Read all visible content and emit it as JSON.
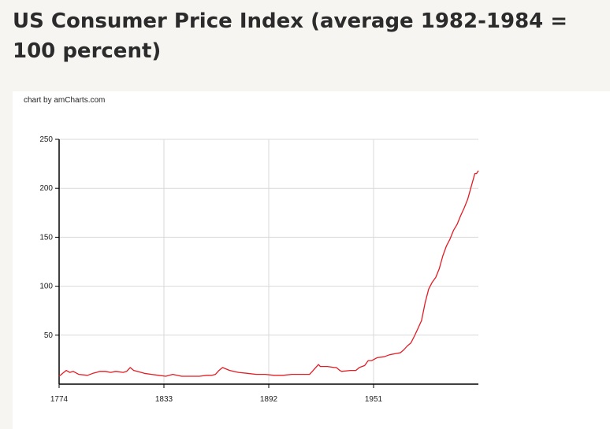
{
  "page": {
    "title": "US Consumer Price Index (average 1982-1984 = 100 percent)"
  },
  "chart": {
    "credit": "chart by amCharts.com"
  },
  "chart_data": {
    "type": "line",
    "title": "",
    "xlabel": "",
    "ylabel": "",
    "xlim": [
      1774,
      2010
    ],
    "ylim": [
      0,
      250
    ],
    "x_ticks": [
      1774,
      1833,
      1892,
      1951
    ],
    "y_ticks": [
      50,
      100,
      150,
      200,
      250
    ],
    "grid": true,
    "legend": "none",
    "line_color": "#e31b23",
    "series": [
      {
        "x": [
          1774,
          1776,
          1778,
          1780,
          1782,
          1785,
          1790,
          1793,
          1795,
          1797,
          1800,
          1803,
          1806,
          1810,
          1812,
          1814,
          1816,
          1818,
          1822,
          1826,
          1830,
          1834,
          1836,
          1838,
          1843,
          1848,
          1853,
          1857,
          1860,
          1862,
          1864,
          1866,
          1870,
          1875,
          1880,
          1885,
          1890,
          1895,
          1900,
          1905,
          1910,
          1913,
          1915,
          1917,
          1918,
          1920,
          1921,
          1925,
          1929,
          1930,
          1932,
          1933,
          1938,
          1941,
          1943,
          1946,
          1948,
          1950,
          1953,
          1957,
          1960,
          1963,
          1966,
          1968,
          1970,
          1972,
          1974,
          1976,
          1978,
          1980,
          1982,
          1984,
          1986,
          1988,
          1990,
          1992,
          1994,
          1996,
          1998,
          2000,
          2002,
          2004,
          2006,
          2008,
          2009,
          2010
        ],
        "y": [
          8,
          11,
          14,
          12,
          13,
          10,
          9,
          11,
          12,
          13,
          13,
          12,
          13,
          12,
          13,
          17,
          14,
          13,
          11,
          10,
          9,
          8,
          9,
          10,
          8,
          8,
          8,
          9,
          9,
          10,
          14,
          17,
          14,
          12,
          11,
          10,
          10,
          9,
          9,
          10,
          10,
          10,
          10,
          14,
          16,
          20,
          18,
          18,
          17,
          17,
          14,
          13,
          14,
          14,
          17,
          19,
          24,
          24,
          27,
          28,
          30,
          31,
          32,
          35,
          39,
          42,
          49,
          57,
          65,
          83,
          97,
          104,
          109,
          118,
          131,
          141,
          148,
          157,
          163,
          172,
          180,
          189,
          202,
          215,
          215,
          218
        ]
      }
    ]
  }
}
